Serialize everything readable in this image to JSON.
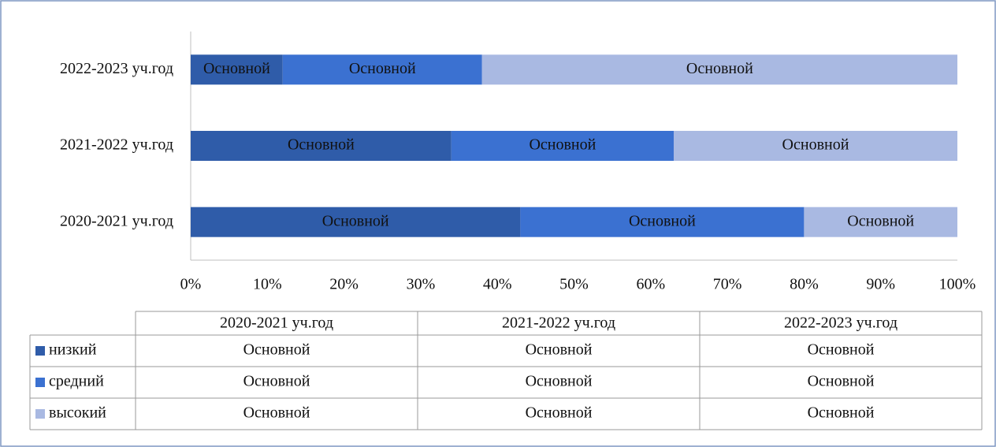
{
  "chart_data": {
    "type": "stacked_bar_horizontal_100",
    "categories": [
      "2020-2021 уч.год",
      "2021-2022 уч.год",
      "2022-2023 уч.год"
    ],
    "series": [
      {
        "name": "низкий",
        "color": "#2f5ca9",
        "values": [
          43,
          34,
          12
        ],
        "value_labels": [
          "Основной",
          "Основной",
          "Основной"
        ]
      },
      {
        "name": "средний",
        "color": "#3b71d1",
        "values": [
          37,
          29,
          26
        ],
        "value_labels": [
          "Основной",
          "Основной",
          "Основной"
        ]
      },
      {
        "name": "высокий",
        "color": "#a9b9e2",
        "values": [
          20,
          37,
          62
        ],
        "value_labels": [
          "Основной",
          "Основной",
          "Основной"
        ]
      }
    ],
    "xlim": [
      0,
      100
    ],
    "xticks": [
      {
        "value": 0,
        "label": "0%"
      },
      {
        "value": 10,
        "label": "10%"
      },
      {
        "value": 20,
        "label": "20%"
      },
      {
        "value": 30,
        "label": "30%"
      },
      {
        "value": 40,
        "label": "40%"
      },
      {
        "value": 50,
        "label": "50%"
      },
      {
        "value": 60,
        "label": "60%"
      },
      {
        "value": 70,
        "label": "70%"
      },
      {
        "value": 80,
        "label": "80%"
      },
      {
        "value": 90,
        "label": "90%"
      },
      {
        "value": 100,
        "label": "100%"
      }
    ],
    "data_table": true
  }
}
